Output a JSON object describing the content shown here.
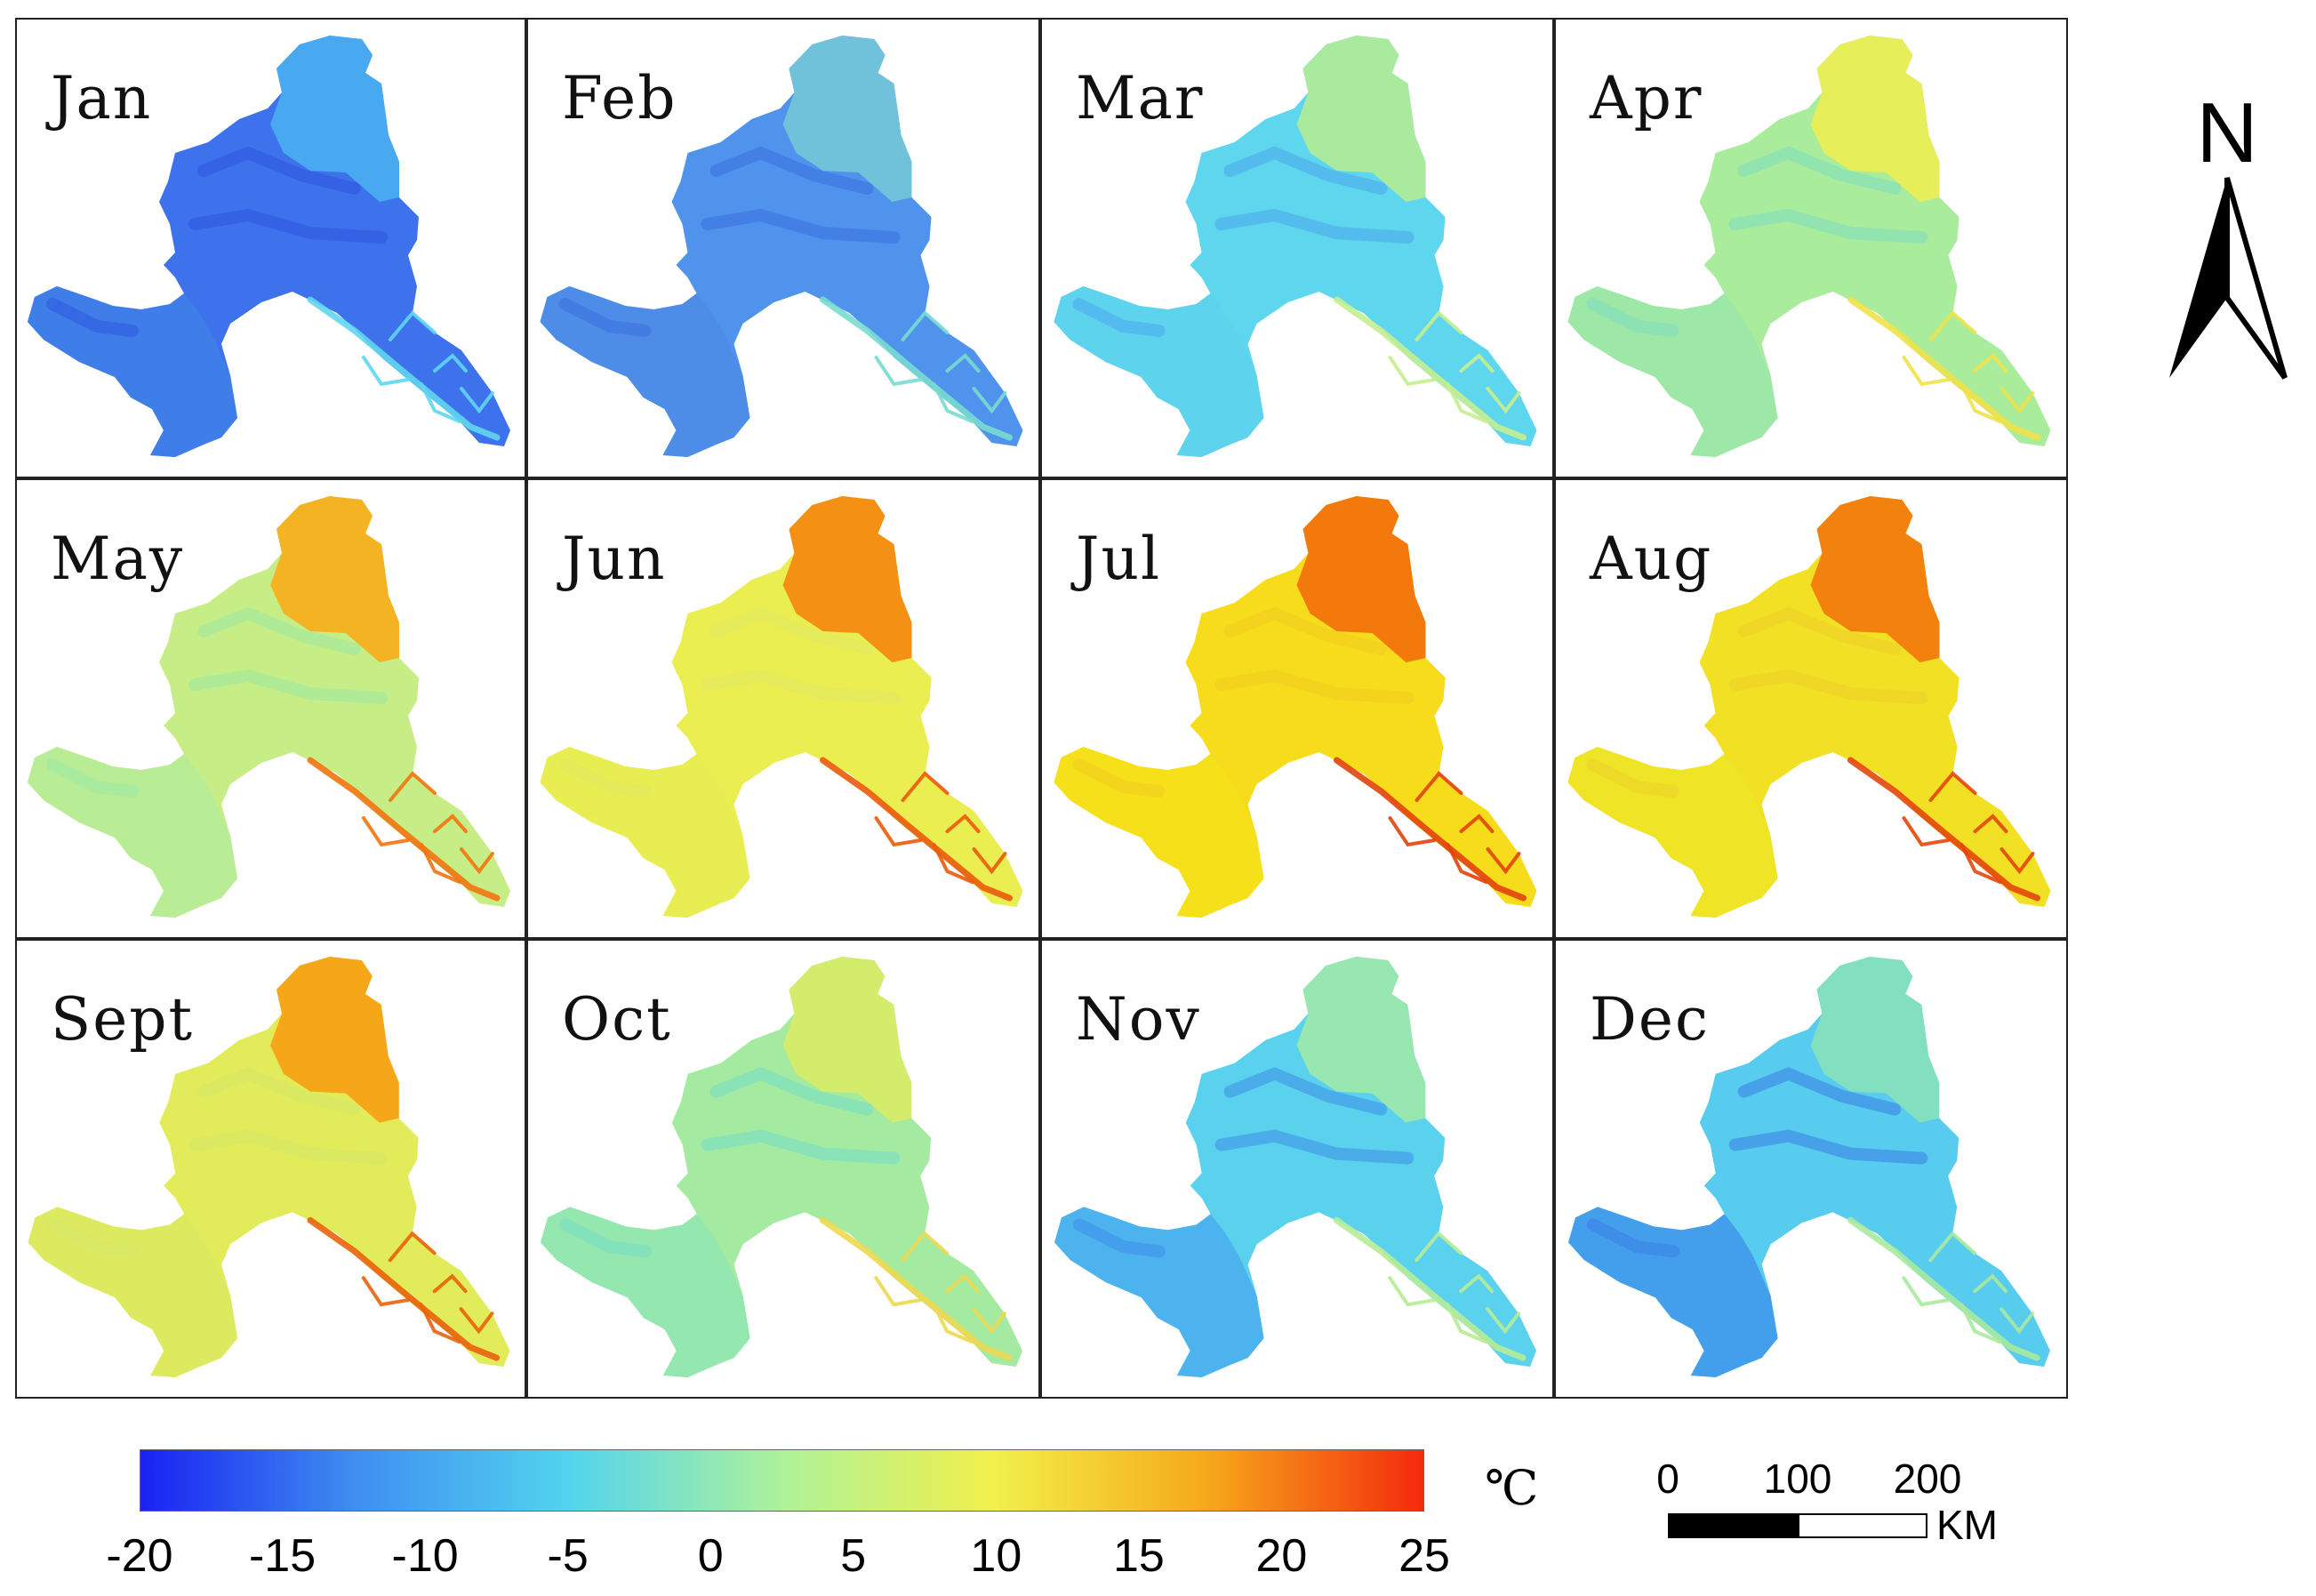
{
  "figure": {
    "panels": [
      {
        "label": "Jan",
        "body": "#3d72ec",
        "north": "#4aaef0",
        "south": "#3f7fe8",
        "valley": "#5fd6f0",
        "ridge": "#2f55e0"
      },
      {
        "label": "Feb",
        "body": "#4f93ec",
        "north": "#72c6d8",
        "south": "#4c8ce6",
        "valley": "#78dcd0",
        "ridge": "#3c6fe0"
      },
      {
        "label": "Mar",
        "body": "#5ed6ee",
        "north": "#b0ec98",
        "south": "#5ed2ec",
        "valley": "#c4ee90",
        "ridge": "#4aa8ec"
      },
      {
        "label": "Apr",
        "body": "#a9ec9c",
        "north": "#ecee54",
        "south": "#9be8a8",
        "valley": "#f0e24a",
        "ridge": "#7edcc0"
      },
      {
        "label": "May",
        "body": "#c7ee86",
        "north": "#f6ae1a",
        "south": "#b6ec98",
        "valley": "#f27410",
        "ridge": "#9ae8a6"
      },
      {
        "label": "Jun",
        "body": "#eaee50",
        "north": "#f4880e",
        "south": "#e8ec52",
        "valley": "#ea5a0a",
        "ridge": "#e0ea62"
      },
      {
        "label": "Jul",
        "body": "#f6dc1a",
        "north": "#f2700c",
        "south": "#f4e01a",
        "valley": "#e2420a",
        "ridge": "#f0cc20"
      },
      {
        "label": "Aug",
        "body": "#f2e024",
        "north": "#f27a0c",
        "south": "#f0e428",
        "valley": "#e4460a",
        "ridge": "#eed02a"
      },
      {
        "label": "Sept",
        "body": "#e2ec5a",
        "north": "#f6a014",
        "south": "#dcea62",
        "valley": "#ea620a",
        "ridge": "#d6e86a"
      },
      {
        "label": "Oct",
        "body": "#a4eaa0",
        "north": "#d8ec66",
        "south": "#92e6b0",
        "valley": "#eed850",
        "ridge": "#74dcc8"
      },
      {
        "label": "Nov",
        "body": "#5ad2ee",
        "north": "#9ee8aa",
        "south": "#4aaeee",
        "valley": "#b6ec96",
        "ridge": "#3f8de8"
      },
      {
        "label": "Dec",
        "body": "#58ccee",
        "north": "#86e2bc",
        "south": "#3f96ea",
        "valley": "#a8ea9e",
        "ridge": "#3b7ee6"
      }
    ]
  },
  "colorbar": {
    "min": -20,
    "max": 25,
    "ticks": [
      "-20",
      "-15",
      "-10",
      "-5",
      "0",
      "5",
      "10",
      "15",
      "20",
      "25"
    ],
    "tick_values": [
      -20,
      -15,
      -10,
      -5,
      0,
      5,
      10,
      15,
      20,
      25
    ],
    "unit": "℃",
    "colors": [
      "#1a22f2",
      "#3f8ef0",
      "#52d4ee",
      "#aef29a",
      "#f2f04a",
      "#f6a81a",
      "#f42a0e"
    ]
  },
  "north_arrow": {
    "letter": "N"
  },
  "scale_bar": {
    "labels": [
      "0",
      "100",
      "200"
    ],
    "unit": "KM"
  },
  "chart_data": {
    "type": "heatmap",
    "title": "",
    "panels": [
      "Jan",
      "Feb",
      "Mar",
      "Apr",
      "May",
      "Jun",
      "Jul",
      "Aug",
      "Sept",
      "Oct",
      "Nov",
      "Dec"
    ],
    "colorbar_range": [
      -20,
      25
    ],
    "colorbar_ticks": [
      -20,
      -15,
      -10,
      -5,
      0,
      5,
      10,
      15,
      20,
      25
    ],
    "unit": "℃"
  }
}
